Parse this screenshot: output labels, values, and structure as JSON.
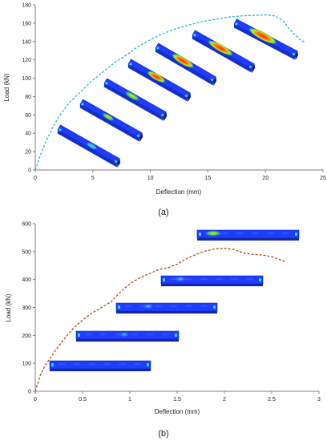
{
  "chart_data": [
    {
      "type": "line",
      "panel_label": "(a)",
      "xlabel": "Deflection (mm)",
      "ylabel": "Load (kN)",
      "xlim": [
        0,
        25
      ],
      "ylim": [
        0,
        180
      ],
      "xticks": [
        0,
        5,
        10,
        15,
        20,
        25
      ],
      "yticks": [
        0,
        20,
        40,
        60,
        80,
        100,
        120,
        140,
        160,
        180
      ],
      "grid": false,
      "line_color": "#2bb3d9",
      "line_style": "dashed",
      "series": [
        {
          "x": [
            0,
            0.5,
            1,
            1.5,
            2,
            2.5,
            3,
            4,
            5,
            6,
            7,
            8,
            9,
            10,
            11,
            12,
            13,
            14,
            15,
            16,
            17,
            18,
            19,
            20,
            20.8,
            21.5,
            22.2,
            23,
            23.5
          ],
          "y": [
            0,
            18,
            33,
            46,
            57,
            66,
            74,
            86,
            98,
            108,
            118,
            126,
            135,
            142,
            148,
            153,
            157,
            160,
            163,
            165,
            167,
            168,
            168.5,
            169,
            168,
            163,
            152,
            142,
            139
          ]
        }
      ],
      "fe_snapshots": 7
    },
    {
      "type": "line",
      "panel_label": "(b)",
      "xlabel": "Deflection (mm)",
      "ylabel": "Load (kN)",
      "xlim": [
        0,
        3
      ],
      "ylim": [
        0,
        600
      ],
      "xticks": [
        0,
        0.5,
        1,
        1.5,
        2,
        2.5,
        3
      ],
      "yticks": [
        0,
        100,
        200,
        300,
        400,
        500,
        600
      ],
      "grid": false,
      "line_color": "#b5441d",
      "line_style": "dashed",
      "series": [
        {
          "x": [
            0,
            0.05,
            0.1,
            0.2,
            0.3,
            0.4,
            0.5,
            0.6,
            0.7,
            0.8,
            0.9,
            1.0,
            1.1,
            1.2,
            1.3,
            1.4,
            1.5,
            1.6,
            1.7,
            1.8,
            1.9,
            2.0,
            2.1,
            2.2,
            2.3,
            2.4,
            2.5,
            2.6,
            2.65
          ],
          "y": [
            0,
            55,
            90,
            140,
            185,
            225,
            255,
            280,
            300,
            320,
            355,
            385,
            405,
            420,
            435,
            442,
            455,
            475,
            490,
            502,
            510,
            512,
            508,
            495,
            490,
            488,
            482,
            470,
            463
          ]
        }
      ],
      "fe_snapshots": 5
    }
  ]
}
